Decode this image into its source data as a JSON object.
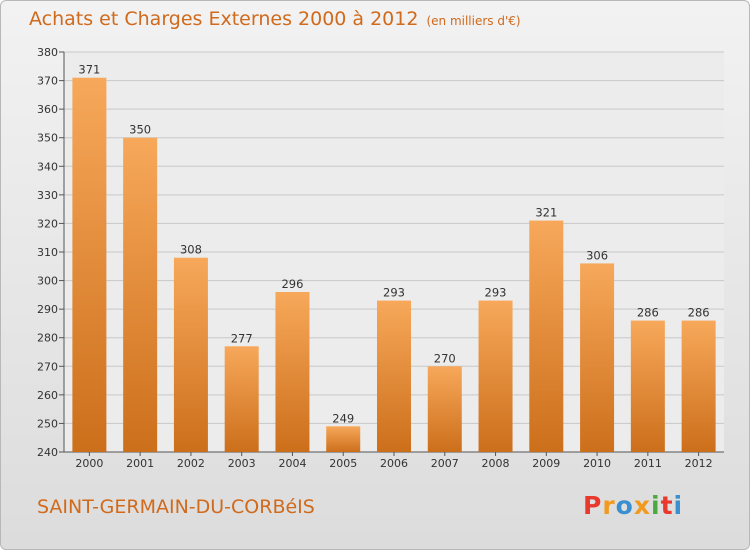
{
  "header": {
    "title": "Achats et Charges Externes 2000 à 2012",
    "subtitle": "(en milliers d'€)"
  },
  "footer": {
    "commune": "SAINT-GERMAIN-DU-CORBéIS",
    "logo": "Proxiti"
  },
  "colors": {
    "bar_top": "#f7a85a",
    "bar_bottom": "#cc6f1b",
    "title": "#d06a1c",
    "logo_letters": [
      "#e8392c",
      "#f29a1f",
      "#3a8fd0",
      "#f29a1f",
      "#4aaa3c",
      "#e8392c",
      "#3a8fd0"
    ]
  },
  "chart_data": {
    "type": "bar",
    "title": "Achats et Charges Externes 2000 à 2012",
    "subtitle": "(en milliers d'€)",
    "categories": [
      "2000",
      "2001",
      "2002",
      "2003",
      "2004",
      "2005",
      "2006",
      "2007",
      "2008",
      "2009",
      "2010",
      "2011",
      "2012"
    ],
    "values": [
      371,
      350,
      308,
      277,
      296,
      249,
      293,
      270,
      293,
      321,
      306,
      286,
      286
    ],
    "ylim": [
      240,
      380
    ],
    "yticks": [
      240,
      250,
      260,
      270,
      280,
      290,
      300,
      310,
      320,
      330,
      340,
      350,
      360,
      370,
      380
    ],
    "grid": true,
    "legend": "none"
  }
}
